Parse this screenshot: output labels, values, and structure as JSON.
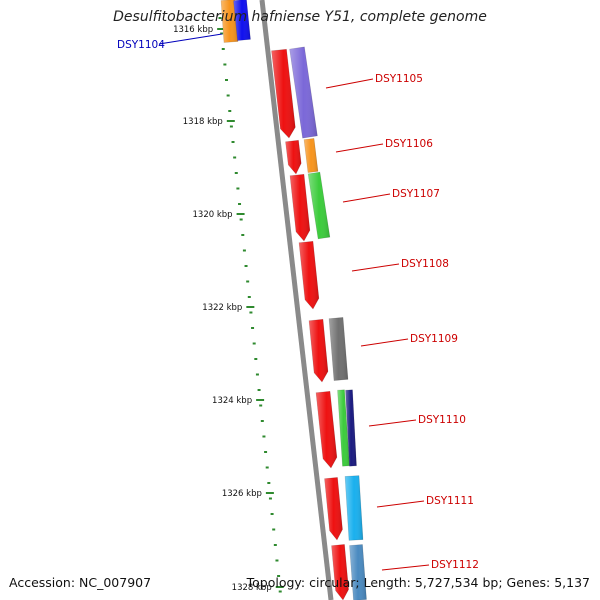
{
  "title": "Desulfitobacterium hafniense Y51, complete genome",
  "accession": "Accession: NC_007907",
  "summary": "Topology: circular; Length: 5,727,534 bp; Genes: 5,137",
  "colors": {
    "backbone": "#8a8a8a",
    "tick": "#2f8a2f",
    "label": "#cc0000",
    "label_highlight": "#0000bb"
  },
  "scale_labels": [
    "1316 kbp",
    "1318 kbp",
    "1320 kbp",
    "1322 kbp",
    "1324 kbp",
    "1326 kbp",
    "1328 kbp"
  ],
  "genes": [
    {
      "label": "DSY1104",
      "color": "#1010ee",
      "highlight": true
    },
    {
      "label": "DSY1105",
      "color": "#7b68d8",
      "highlight": false
    },
    {
      "label": "DSY1106",
      "color": "#f7941d",
      "highlight": false
    },
    {
      "label": "DSY1107",
      "color": "#3ccc3c",
      "highlight": false
    },
    {
      "label": "DSY1108",
      "color": "#ee1111",
      "highlight": false
    },
    {
      "label": "DSY1109",
      "color": "#707070",
      "highlight": false
    },
    {
      "label": "DSY1110",
      "color": "#1a1a80",
      "highlight": false
    },
    {
      "label": "DSY1111",
      "color": "#1ab0ee",
      "highlight": false
    },
    {
      "label": "DSY1112",
      "color": "#4a8ac0",
      "highlight": false
    }
  ]
}
